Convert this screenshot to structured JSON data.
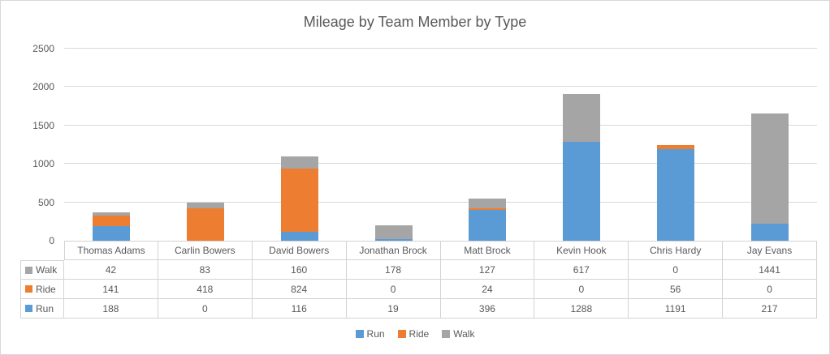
{
  "chart_data": {
    "type": "bar",
    "stacked": true,
    "title": "Mileage by Team Member by Type",
    "categories": [
      "Thomas Adams",
      "Carlin Bowers",
      "David Bowers",
      "Jonathan Brock",
      "Matt Brock",
      "Kevin Hook",
      "Chris Hardy",
      "Jay Evans"
    ],
    "series": [
      {
        "name": "Run",
        "color": "#5B9BD5",
        "values": [
          188,
          0,
          116,
          19,
          396,
          1288,
          1191,
          217
        ]
      },
      {
        "name": "Ride",
        "color": "#ED7D31",
        "values": [
          141,
          418,
          824,
          0,
          24,
          0,
          56,
          0
        ]
      },
      {
        "name": "Walk",
        "color": "#A5A5A5",
        "values": [
          42,
          83,
          160,
          178,
          127,
          617,
          0,
          1441
        ]
      }
    ],
    "xlabel": "",
    "ylabel": "",
    "ylim": [
      0,
      2500
    ],
    "yticks": [
      0,
      500,
      1000,
      1500,
      2000,
      2500
    ],
    "grid": true,
    "legend_position": "bottom",
    "legend_entries": [
      "Run",
      "Ride",
      "Walk"
    ]
  },
  "data_table": {
    "header": [
      "Thomas Adams",
      "Carlin Bowers",
      "David Bowers",
      "Jonathan Brock",
      "Matt Brock",
      "Kevin Hook",
      "Chris Hardy",
      "Jay Evans"
    ],
    "rows": [
      {
        "label": "Walk",
        "values": [
          "42",
          "83",
          "160",
          "178",
          "127",
          "617",
          "0",
          "1441"
        ]
      },
      {
        "label": "Ride",
        "values": [
          "141",
          "418",
          "824",
          "0",
          "24",
          "0",
          "56",
          "0"
        ]
      },
      {
        "label": "Run",
        "values": [
          "188",
          "0",
          "116",
          "19",
          "396",
          "1288",
          "1191",
          "217"
        ]
      }
    ]
  }
}
